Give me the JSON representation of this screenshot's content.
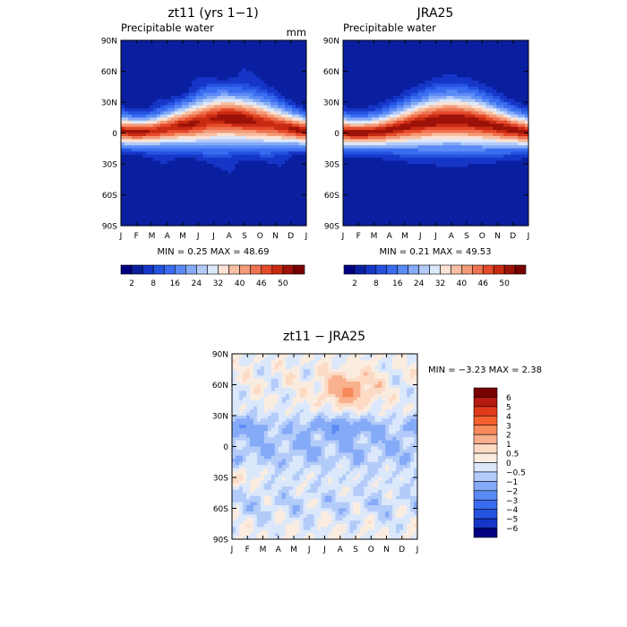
{
  "chart_data": [
    {
      "type": "heatmap",
      "title": "zt11 (yrs 1−1)",
      "subtitle": "Precipitable water",
      "unit": "mm",
      "x_ticks": [
        "J",
        "F",
        "M",
        "A",
        "M",
        "J",
        "J",
        "A",
        "S",
        "O",
        "N",
        "D",
        "J"
      ],
      "y_ticks": [
        "90N",
        "60N",
        "30N",
        "0",
        "30S",
        "60S",
        "90S"
      ],
      "stats": "MIN =    0.25 MAX =   48.69",
      "min": 0.25,
      "max": 48.69,
      "colorbar_labels": [
        "2",
        "8",
        "16",
        "24",
        "32",
        "40",
        "46",
        "50"
      ]
    },
    {
      "type": "heatmap",
      "title": "JRA25",
      "subtitle": "Precipitable water",
      "x_ticks": [
        "J",
        "F",
        "M",
        "A",
        "M",
        "J",
        "J",
        "A",
        "S",
        "O",
        "N",
        "D",
        "J"
      ],
      "y_ticks": [
        "90N",
        "60N",
        "30N",
        "0",
        "30S",
        "60S",
        "90S"
      ],
      "stats": "MIN =    0.21 MAX =   49.53",
      "min": 0.21,
      "max": 49.53,
      "colorbar_labels": [
        "2",
        "8",
        "16",
        "24",
        "32",
        "40",
        "46",
        "50"
      ]
    },
    {
      "type": "heatmap",
      "title": "zt11 − JRA25",
      "x_ticks": [
        "J",
        "F",
        "M",
        "A",
        "M",
        "J",
        "J",
        "A",
        "S",
        "O",
        "N",
        "D",
        "J"
      ],
      "y_ticks": [
        "90N",
        "60N",
        "30N",
        "0",
        "30S",
        "60S",
        "90S"
      ],
      "stats": "MIN =  −3.23 MAX =    2.38",
      "min": -3.23,
      "max": 2.38,
      "colorbar_labels": [
        "6",
        "5",
        "4",
        "3",
        "2",
        "1",
        "0.5",
        "0",
        "−0.5",
        "−1",
        "−2",
        "−3",
        "−4",
        "−5",
        "−6"
      ]
    }
  ],
  "colors": {
    "abs_scale": [
      "#000080",
      "#0a1fa0",
      "#1636c8",
      "#2453e0",
      "#3a6cf0",
      "#5a8af5",
      "#85aaf7",
      "#b3cbf9",
      "#dbe8fb",
      "#fbe2d4",
      "#f7bfa3",
      "#f39a78",
      "#ee7350",
      "#e54a2a",
      "#c82a12",
      "#9c1208",
      "#780000"
    ],
    "diff_scale": [
      "#780000",
      "#b41a0e",
      "#e03a1a",
      "#f4602e",
      "#f7895a",
      "#f9b08c",
      "#fcdac4",
      "#fbece0",
      "#dbe8fb",
      "#b3cbf9",
      "#85aaf7",
      "#5a8af5",
      "#3a6cf0",
      "#2453e0",
      "#1636c8",
      "#000080"
    ]
  }
}
